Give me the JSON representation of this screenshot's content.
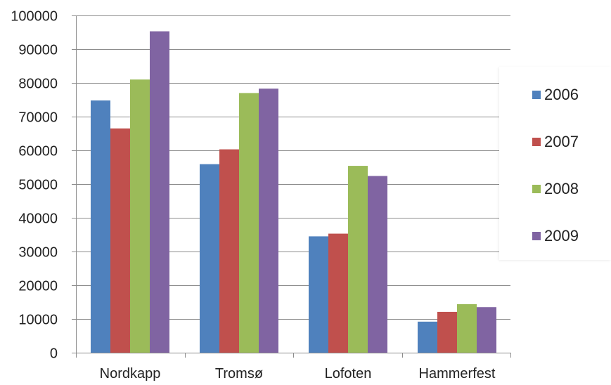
{
  "chart_data": {
    "type": "bar",
    "title": "",
    "xlabel": "",
    "ylabel": "",
    "categories": [
      "Nordkapp",
      "Tromsø",
      "Lofoten",
      "Hammerfest"
    ],
    "ylim": [
      0,
      100000
    ],
    "yticks": [
      0,
      10000,
      20000,
      30000,
      40000,
      50000,
      60000,
      70000,
      80000,
      90000,
      100000
    ],
    "grid": true,
    "legend_position": "right",
    "series": [
      {
        "name": "2006",
        "color": "#4F81BD",
        "values": [
          74800,
          55900,
          34500,
          9200
        ]
      },
      {
        "name": "2007",
        "color": "#C0504D",
        "values": [
          66500,
          60300,
          35300,
          12100
        ]
      },
      {
        "name": "2008",
        "color": "#9BBB59",
        "values": [
          81000,
          77000,
          55400,
          14400
        ]
      },
      {
        "name": "2009",
        "color": "#8064A2",
        "values": [
          95300,
          78300,
          52400,
          13500
        ]
      }
    ]
  }
}
